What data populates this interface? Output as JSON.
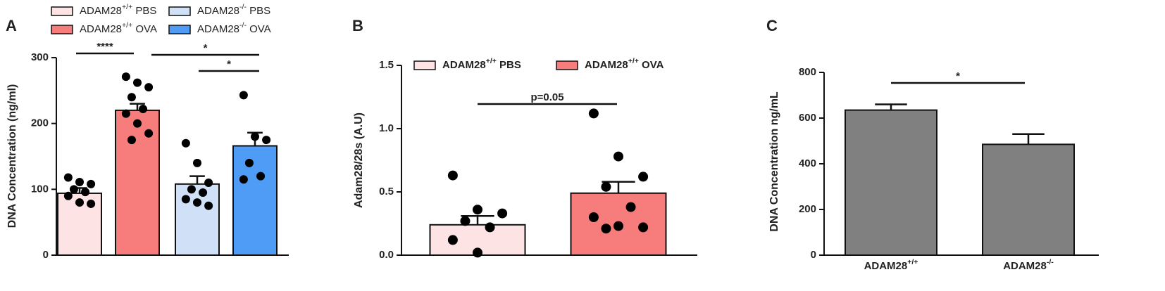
{
  "chart_data": [
    {
      "type": "bar",
      "panel": "A",
      "y_label": "DNA Concentration (ng/ml)",
      "ylim": [
        0,
        300
      ],
      "yticks": [
        0,
        100,
        200,
        300
      ],
      "legend_bold": false,
      "series": [
        {
          "name": "ADAM28+/+ PBS",
          "color": "#fde3e3",
          "values": [
            94
          ],
          "errors": [
            8
          ],
          "points": [
            118,
            111,
            108,
            100,
            96,
            90,
            80,
            78
          ]
        },
        {
          "name": "ADAM28+/+ OVA",
          "color": "#f77d7d",
          "values": [
            220
          ],
          "errors": [
            10
          ],
          "points": [
            271,
            262,
            255,
            240,
            222,
            215,
            200,
            185,
            175
          ]
        },
        {
          "name": "ADAM28-/- PBS",
          "color": "#cfe0f7",
          "values": [
            108
          ],
          "errors": [
            12
          ],
          "points": [
            170,
            140,
            110,
            100,
            95,
            85,
            80,
            75
          ]
        },
        {
          "name": "ADAM28-/- OVA",
          "color": "#4f9cf7",
          "values": [
            166
          ],
          "errors": [
            20
          ],
          "points": [
            243,
            180,
            175,
            140,
            120,
            115
          ]
        }
      ],
      "annotations": [
        {
          "text": "****",
          "from": 0,
          "to": 1
        },
        {
          "text": "*",
          "from": 1,
          "to": 3
        },
        {
          "text": "*",
          "from": 2,
          "to": 3
        }
      ]
    },
    {
      "type": "bar",
      "panel": "B",
      "y_label": "Adam28/28s (A.U)",
      "ylim": [
        0,
        1.5
      ],
      "yticks": [
        {
          "value": 0,
          "label": "0.0"
        },
        {
          "value": 0.5,
          "label": "0.5"
        },
        {
          "value": 1,
          "label": "1.0"
        },
        {
          "value": 1.5,
          "label": "1.5"
        }
      ],
      "legend_bold": true,
      "series": [
        {
          "name": "ADAM28+/+ PBS",
          "color": "#fde3e3",
          "values": [
            0.24
          ],
          "errors": [
            0.07
          ],
          "points": [
            0.63,
            0.36,
            0.33,
            0.27,
            0.22,
            0.12,
            0.02
          ]
        },
        {
          "name": "ADAM28+/+ OVA",
          "color": "#f77d7d",
          "values": [
            0.49
          ],
          "errors": [
            0.09
          ],
          "points": [
            1.12,
            0.78,
            0.62,
            0.54,
            0.38,
            0.3,
            0.23,
            0.22,
            0.21
          ]
        }
      ],
      "annotations": [
        {
          "text": "p=0.05",
          "from": 0,
          "to": 1
        }
      ]
    },
    {
      "type": "bar",
      "panel": "C",
      "y_label": "DNA Concentration ng/mL",
      "ylim": [
        0,
        800
      ],
      "yticks": [
        0,
        200,
        400,
        600,
        800
      ],
      "categories": [
        "ADAM28+/+",
        "ADAM28-/-"
      ],
      "color": "#808080",
      "values": [
        635,
        485
      ],
      "errors": [
        25,
        45
      ],
      "annotations": [
        {
          "text": "*",
          "from": 0,
          "to": 1
        }
      ]
    }
  ]
}
